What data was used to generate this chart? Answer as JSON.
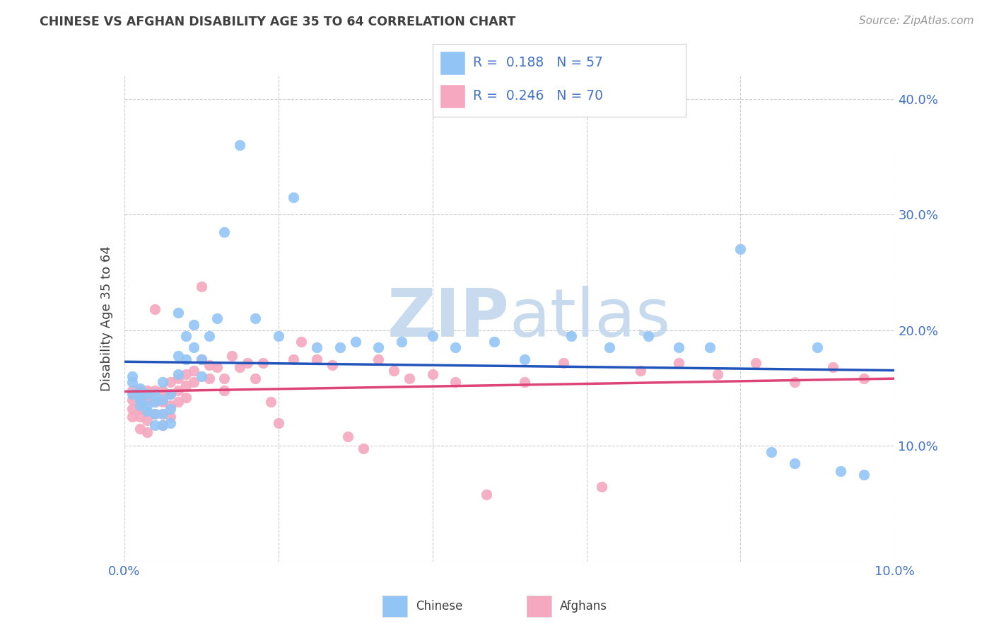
{
  "title": "CHINESE VS AFGHAN DISABILITY AGE 35 TO 64 CORRELATION CHART",
  "source": "Source: ZipAtlas.com",
  "ylabel": "Disability Age 35 to 64",
  "xlim": [
    0.0,
    0.1
  ],
  "ylim": [
    0.0,
    0.42
  ],
  "xticks": [
    0.0,
    0.02,
    0.04,
    0.06,
    0.08,
    0.1
  ],
  "xtick_labels": [
    "0.0%",
    "",
    "",
    "",
    "",
    "10.0%"
  ],
  "yticks": [
    0.0,
    0.1,
    0.2,
    0.3,
    0.4
  ],
  "ytick_labels_right": [
    "",
    "10.0%",
    "20.0%",
    "30.0%",
    "40.0%"
  ],
  "chinese_R": 0.188,
  "chinese_N": 57,
  "afghan_R": 0.246,
  "afghan_N": 70,
  "chinese_color": "#92C5F5",
  "afghan_color": "#F5A8C0",
  "trend_chinese_color": "#2255BB",
  "trend_afghan_color": "#DD4477",
  "watermark_color": "#C8DAEE",
  "background_color": "#FFFFFF",
  "grid_color": "#CCCCCC",
  "tick_color": "#4472C4",
  "title_color": "#404040",
  "source_color": "#999999",
  "ylabel_color": "#404040",
  "legend_border_color": "#CCCCCC",
  "chinese_x": [
    0.001,
    0.001,
    0.001,
    0.002,
    0.002,
    0.002,
    0.002,
    0.003,
    0.003,
    0.003,
    0.004,
    0.004,
    0.004,
    0.004,
    0.005,
    0.005,
    0.005,
    0.005,
    0.006,
    0.006,
    0.006,
    0.007,
    0.007,
    0.007,
    0.008,
    0.008,
    0.009,
    0.009,
    0.01,
    0.01,
    0.011,
    0.012,
    0.013,
    0.015,
    0.017,
    0.02,
    0.022,
    0.025,
    0.028,
    0.03,
    0.033,
    0.036,
    0.04,
    0.043,
    0.048,
    0.052,
    0.058,
    0.063,
    0.068,
    0.072,
    0.076,
    0.08,
    0.084,
    0.087,
    0.09,
    0.093,
    0.096
  ],
  "chinese_y": [
    0.145,
    0.155,
    0.16,
    0.14,
    0.15,
    0.145,
    0.135,
    0.145,
    0.135,
    0.13,
    0.145,
    0.138,
    0.128,
    0.118,
    0.155,
    0.14,
    0.128,
    0.118,
    0.145,
    0.132,
    0.12,
    0.215,
    0.178,
    0.162,
    0.195,
    0.175,
    0.205,
    0.185,
    0.175,
    0.16,
    0.195,
    0.21,
    0.285,
    0.36,
    0.21,
    0.195,
    0.315,
    0.185,
    0.185,
    0.19,
    0.185,
    0.19,
    0.195,
    0.185,
    0.19,
    0.175,
    0.195,
    0.185,
    0.195,
    0.185,
    0.185,
    0.27,
    0.095,
    0.085,
    0.185,
    0.078,
    0.075
  ],
  "afghan_x": [
    0.001,
    0.001,
    0.001,
    0.001,
    0.002,
    0.002,
    0.002,
    0.002,
    0.002,
    0.003,
    0.003,
    0.003,
    0.003,
    0.003,
    0.004,
    0.004,
    0.004,
    0.004,
    0.005,
    0.005,
    0.005,
    0.005,
    0.006,
    0.006,
    0.006,
    0.006,
    0.007,
    0.007,
    0.007,
    0.008,
    0.008,
    0.008,
    0.009,
    0.009,
    0.01,
    0.01,
    0.011,
    0.011,
    0.012,
    0.013,
    0.013,
    0.014,
    0.015,
    0.016,
    0.017,
    0.018,
    0.019,
    0.02,
    0.022,
    0.023,
    0.025,
    0.027,
    0.029,
    0.031,
    0.033,
    0.035,
    0.037,
    0.04,
    0.043,
    0.047,
    0.052,
    0.057,
    0.062,
    0.067,
    0.072,
    0.077,
    0.082,
    0.087,
    0.092,
    0.096
  ],
  "afghan_y": [
    0.148,
    0.14,
    0.132,
    0.125,
    0.148,
    0.14,
    0.132,
    0.125,
    0.115,
    0.148,
    0.14,
    0.13,
    0.122,
    0.112,
    0.218,
    0.148,
    0.138,
    0.128,
    0.148,
    0.138,
    0.128,
    0.118,
    0.155,
    0.145,
    0.135,
    0.125,
    0.158,
    0.148,
    0.138,
    0.162,
    0.152,
    0.142,
    0.165,
    0.155,
    0.238,
    0.175,
    0.17,
    0.158,
    0.168,
    0.158,
    0.148,
    0.178,
    0.168,
    0.172,
    0.158,
    0.172,
    0.138,
    0.12,
    0.175,
    0.19,
    0.175,
    0.17,
    0.108,
    0.098,
    0.175,
    0.165,
    0.158,
    0.162,
    0.155,
    0.058,
    0.155,
    0.172,
    0.065,
    0.165,
    0.172,
    0.162,
    0.172,
    0.155,
    0.168,
    0.158
  ]
}
